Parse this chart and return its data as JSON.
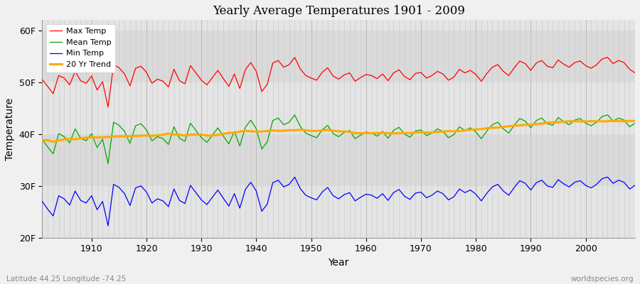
{
  "title": "Yearly Average Temperatures 1901 - 2009",
  "xlabel": "Year",
  "ylabel": "Temperature",
  "start_year": 1901,
  "end_year": 2009,
  "ylim": [
    20,
    62
  ],
  "yticks": [
    20,
    30,
    40,
    50,
    60
  ],
  "ytick_labels": [
    "20F",
    "30F",
    "40F",
    "50F",
    "60F"
  ],
  "background_color": "#f0f0f0",
  "plot_bg_color": "#e8e8e8",
  "band_colors": [
    "#e0e0e0",
    "#d8d8d8"
  ],
  "grid_color": "#ffffff",
  "vgrid_color": "#cccccc",
  "max_temp_color": "#ff0000",
  "mean_temp_color": "#00aa00",
  "min_temp_color": "#0000ff",
  "trend_color": "#ffaa00",
  "legend_labels": [
    "Max Temp",
    "Mean Temp",
    "Min Temp",
    "20 Yr Trend"
  ],
  "footer_left": "Latitude 44.25 Longitude -74.25",
  "footer_right": "worldspecies.org",
  "max_temps": [
    50.5,
    49.2,
    47.8,
    51.3,
    50.8,
    49.5,
    52.1,
    50.3,
    49.8,
    51.2,
    48.5,
    50.1,
    45.2,
    53.4,
    52.8,
    51.6,
    49.3,
    52.7,
    53.1,
    51.9,
    49.8,
    50.6,
    50.2,
    49.1,
    52.5,
    50.3,
    49.7,
    53.2,
    51.8,
    50.4,
    49.5,
    50.9,
    52.3,
    50.7,
    49.2,
    51.6,
    48.8,
    52.4,
    53.8,
    52.1,
    48.2,
    49.6,
    53.7,
    54.2,
    52.9,
    53.4,
    54.8,
    52.6,
    51.3,
    50.8,
    50.4,
    51.9,
    52.8,
    51.2,
    50.6,
    51.4,
    51.8,
    50.2,
    50.9,
    51.5,
    51.3,
    50.7,
    51.6,
    50.3,
    51.8,
    52.4,
    51.1,
    50.5,
    51.7,
    51.9,
    50.8,
    51.3,
    52.1,
    51.6,
    50.4,
    51.0,
    52.5,
    51.8,
    52.3,
    51.5,
    50.2,
    51.7,
    52.9,
    53.4,
    52.1,
    51.3,
    52.8,
    54.1,
    53.6,
    52.3,
    53.7,
    54.2,
    53.1,
    52.8,
    54.3,
    53.5,
    52.9,
    53.8,
    54.1,
    53.2,
    52.7,
    53.4,
    54.5,
    54.8,
    53.6,
    54.2,
    53.8,
    52.5,
    51.8
  ],
  "mean_temps": [
    39.0,
    37.5,
    36.2,
    40.1,
    39.5,
    38.3,
    41.0,
    39.2,
    38.7,
    40.1,
    37.4,
    39.0,
    34.3,
    42.3,
    41.7,
    40.5,
    38.2,
    41.6,
    42.0,
    40.8,
    38.7,
    39.5,
    39.1,
    38.0,
    41.4,
    39.2,
    38.6,
    42.1,
    40.7,
    39.3,
    38.4,
    39.8,
    41.2,
    39.6,
    38.1,
    40.5,
    37.7,
    41.3,
    42.7,
    41.0,
    37.1,
    38.5,
    42.6,
    43.1,
    41.8,
    42.3,
    43.7,
    41.5,
    40.2,
    39.7,
    39.3,
    40.8,
    41.7,
    40.1,
    39.5,
    40.3,
    40.7,
    39.1,
    39.8,
    40.4,
    40.2,
    39.6,
    40.5,
    39.2,
    40.7,
    41.3,
    40.0,
    39.4,
    40.6,
    40.8,
    39.7,
    40.2,
    41.0,
    40.5,
    39.3,
    39.9,
    41.4,
    40.7,
    41.2,
    40.4,
    39.1,
    40.6,
    41.8,
    42.3,
    41.0,
    40.2,
    41.7,
    43.0,
    42.5,
    41.2,
    42.6,
    43.1,
    42.0,
    41.7,
    43.2,
    42.4,
    41.8,
    42.7,
    43.0,
    42.1,
    41.6,
    42.3,
    43.4,
    43.7,
    42.5,
    43.1,
    42.7,
    41.4,
    42.1
  ],
  "min_temps": [
    27.0,
    25.5,
    24.2,
    28.1,
    27.5,
    26.3,
    29.0,
    27.2,
    26.7,
    28.1,
    25.4,
    27.0,
    22.3,
    30.3,
    29.7,
    28.5,
    26.2,
    29.6,
    30.0,
    28.8,
    26.7,
    27.5,
    27.1,
    26.0,
    29.4,
    27.2,
    26.6,
    30.1,
    28.7,
    27.3,
    26.4,
    27.8,
    29.2,
    27.6,
    26.1,
    28.5,
    25.7,
    29.3,
    30.7,
    29.0,
    25.1,
    26.5,
    30.6,
    31.1,
    29.8,
    30.3,
    31.7,
    29.5,
    28.2,
    27.7,
    27.3,
    28.8,
    29.7,
    28.1,
    27.5,
    28.3,
    28.7,
    27.1,
    27.8,
    28.4,
    28.2,
    27.6,
    28.5,
    27.2,
    28.7,
    29.3,
    28.0,
    27.4,
    28.6,
    28.8,
    27.7,
    28.2,
    29.0,
    28.5,
    27.3,
    27.9,
    29.4,
    28.7,
    29.2,
    28.4,
    27.1,
    28.6,
    29.8,
    30.3,
    29.0,
    28.2,
    29.7,
    31.0,
    30.5,
    29.2,
    30.6,
    31.1,
    30.0,
    29.7,
    31.2,
    30.4,
    29.8,
    30.7,
    31.0,
    30.1,
    29.6,
    30.3,
    31.4,
    31.7,
    30.5,
    31.1,
    30.7,
    29.4,
    30.1
  ]
}
